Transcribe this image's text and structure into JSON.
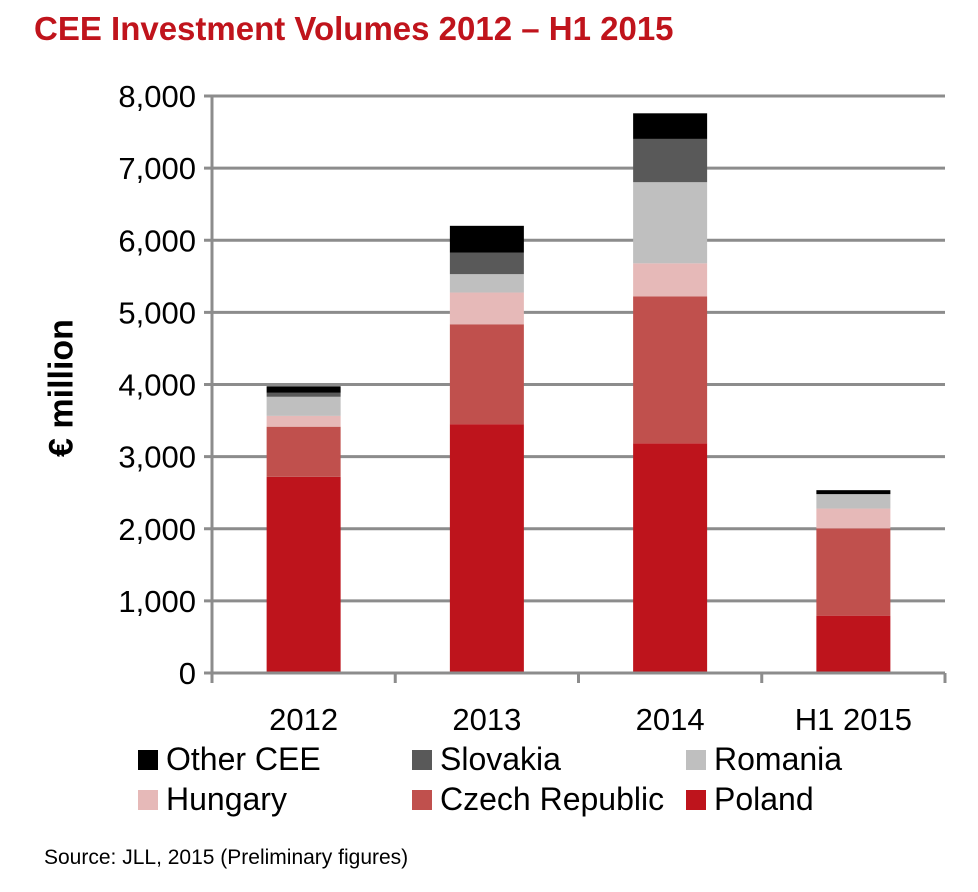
{
  "chart_data": {
    "type": "bar",
    "stacked": true,
    "title": "CEE Investment Volumes 2012 – H1 2015",
    "ylabel": "€ million",
    "xlabel": "",
    "ylim": [
      0,
      8000
    ],
    "yticks": [
      "0",
      "1,000",
      "2,000",
      "3,000",
      "4,000",
      "5,000",
      "6,000",
      "7,000",
      "8,000"
    ],
    "grid": true,
    "legend_position": "bottom",
    "categories": [
      "2012",
      "2013",
      "2014",
      "H1 2015"
    ],
    "series": [
      {
        "name": "Poland",
        "color": "#be141c",
        "values": [
          2720,
          3450,
          3185,
          795
        ]
      },
      {
        "name": "Czech Republic",
        "color": "#c0504d",
        "values": [
          695,
          1385,
          2035,
          1210
        ]
      },
      {
        "name": "Hungary",
        "color": "#e6b9b8",
        "values": [
          150,
          440,
          460,
          275
        ]
      },
      {
        "name": "Romania",
        "color": "#bfbfbf",
        "values": [
          265,
          255,
          1125,
          200
        ]
      },
      {
        "name": "Slovakia",
        "color": "#595959",
        "values": [
          55,
          300,
          600,
          0
        ]
      },
      {
        "name": "Other CEE",
        "color": "#000000",
        "values": [
          90,
          370,
          355,
          55
        ]
      }
    ],
    "legend_order": [
      "Other CEE",
      "Slovakia",
      "Romania",
      "Hungary",
      "Czech Republic",
      "Poland"
    ]
  },
  "source": "Source: JLL, 2015 (Preliminary figures)"
}
